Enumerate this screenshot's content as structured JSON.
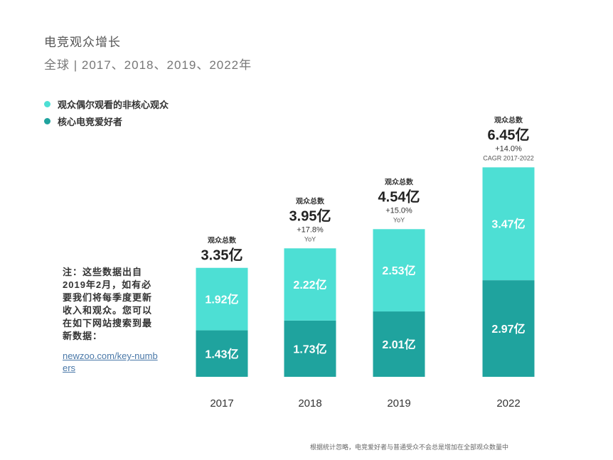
{
  "header": {
    "title": "电竞观众增长",
    "subtitle": "全球 | 2017、2018、2019、2022年"
  },
  "legend": [
    {
      "label": "观众偶尔观看的非核心观众",
      "color": "#4ddfd4"
    },
    {
      "label": "核心电竞爱好者",
      "color": "#1fa39e"
    }
  ],
  "note": {
    "text": "注：这些数据出自2019年2月，如有必要我们将每季度更新收入和观众。您可以在如下网站搜索到最新数据：",
    "link": "newzoo.com/key-numbers"
  },
  "footnote": "根据统计忽略，电竞爱好者与普通受众不会总是增加在全部观众数量中",
  "colors": {
    "noncore": "#4ddfd4",
    "core": "#1fa39e"
  },
  "chart_data": {
    "type": "bar",
    "stacked": true,
    "title": "电竞观众增长",
    "subtitle": "全球 | 2017、2018、2019、2022年",
    "unit": "亿",
    "categories": [
      "2017",
      "2018",
      "2019",
      "2022"
    ],
    "series": [
      {
        "name": "核心电竞爱好者",
        "values": [
          1.43,
          1.73,
          2.01,
          2.97
        ],
        "labels": [
          "1.43亿",
          "1.73亿",
          "2.01亿",
          "2.97亿"
        ]
      },
      {
        "name": "观众偶尔观看的非核心观众",
        "values": [
          1.92,
          2.22,
          2.53,
          3.47
        ],
        "labels": [
          "1.92亿",
          "2.22亿",
          "2.53亿",
          "3.47亿"
        ]
      }
    ],
    "totals": [
      {
        "caption": "观众总数",
        "value": 3.35,
        "label": "3.35亿",
        "growth": "",
        "growth_note": ""
      },
      {
        "caption": "观众总数",
        "value": 3.95,
        "label": "3.95亿",
        "growth": "+17.8%",
        "growth_note": "YoY"
      },
      {
        "caption": "观众总数",
        "value": 4.54,
        "label": "4.54亿",
        "growth": "+15.0%",
        "growth_note": "YoY"
      },
      {
        "caption": "观众总数",
        "value": 6.45,
        "label": "6.45亿",
        "growth": "+14.0%",
        "growth_note": "CAGR 2017-2022"
      }
    ],
    "xlabel": "",
    "ylabel": "",
    "ylim": [
      0,
      6.45
    ]
  }
}
